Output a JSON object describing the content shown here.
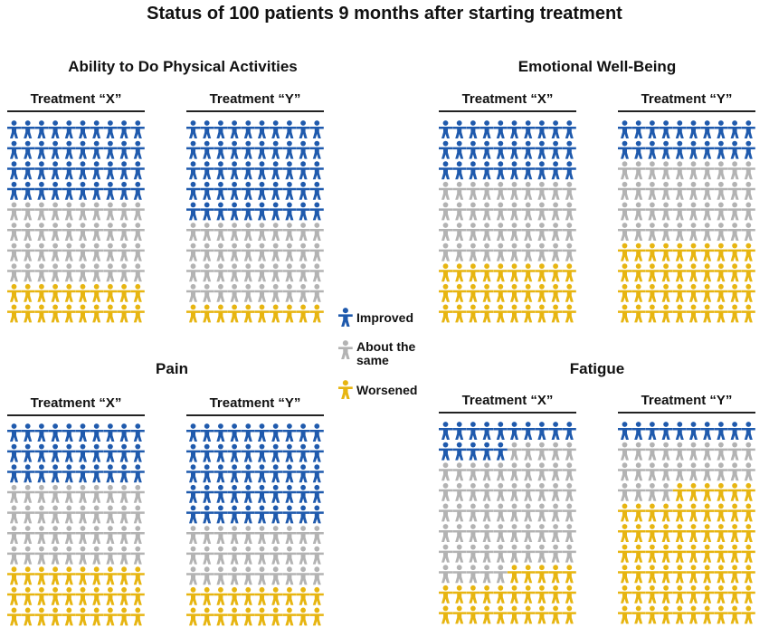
{
  "title": "Status of 100 patients 9 months after starting treatment",
  "colors": {
    "improved": "#1f5aad",
    "same": "#b3b3b3",
    "worsened": "#e7b511"
  },
  "legend": [
    {
      "key": "improved",
      "label": "Improved"
    },
    {
      "key": "same",
      "label": "About the same"
    },
    {
      "key": "worsened",
      "label": "Worsened"
    }
  ],
  "chart_data": [
    {
      "type": "pictograph",
      "title": "Ability to Do Physical Activities",
      "groups": [
        {
          "name": "Treatment “X”",
          "improved": 40,
          "same": 40,
          "worsened": 20
        },
        {
          "name": "Treatment “Y”",
          "improved": 50,
          "same": 40,
          "worsened": 10
        }
      ]
    },
    {
      "type": "pictograph",
      "title": "Emotional Well-Being",
      "groups": [
        {
          "name": "Treatment “X”",
          "improved": 30,
          "same": 40,
          "worsened": 30
        },
        {
          "name": "Treatment “Y”",
          "improved": 20,
          "same": 40,
          "worsened": 40
        }
      ]
    },
    {
      "type": "pictograph",
      "title": "Pain",
      "groups": [
        {
          "name": "Treatment “X”",
          "improved": 30,
          "same": 40,
          "worsened": 30
        },
        {
          "name": "Treatment “Y”",
          "improved": 50,
          "same": 30,
          "worsened": 20
        }
      ]
    },
    {
      "type": "pictograph",
      "title": "Fatigue",
      "groups": [
        {
          "name": "Treatment “X”",
          "improved": 15,
          "same": 60,
          "worsened": 25
        },
        {
          "name": "Treatment “Y”",
          "improved": 10,
          "same": 24,
          "worsened": 66
        }
      ]
    }
  ]
}
